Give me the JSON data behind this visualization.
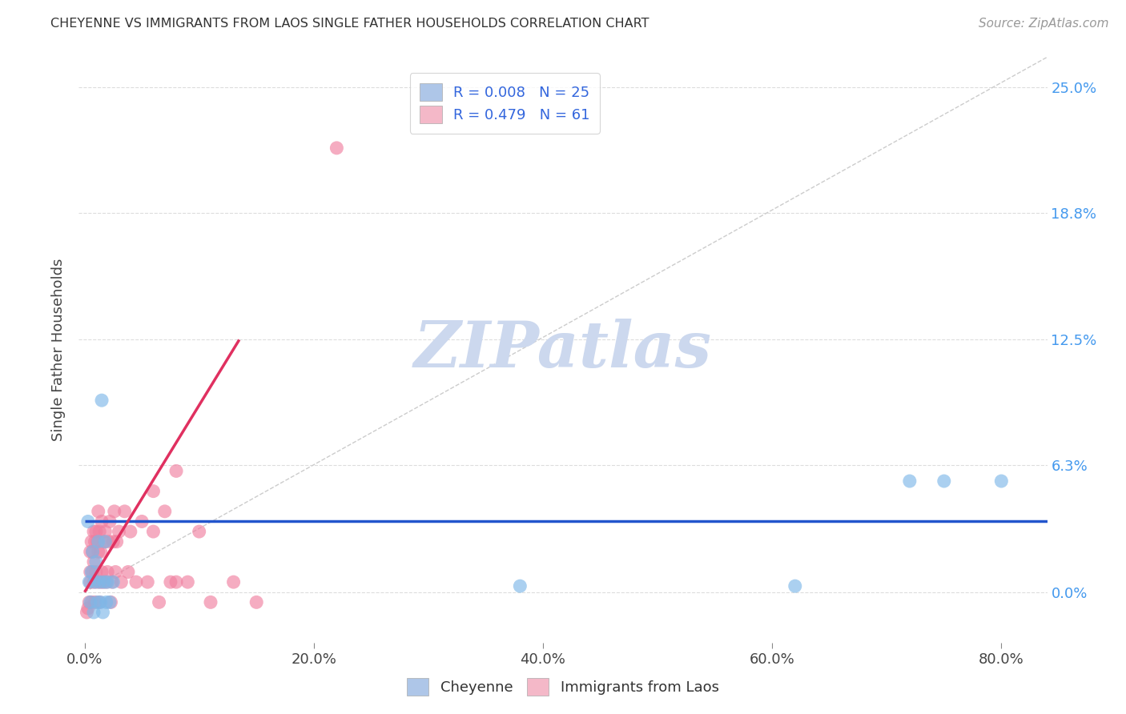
{
  "title": "CHEYENNE VS IMMIGRANTS FROM LAOS SINGLE FATHER HOUSEHOLDS CORRELATION CHART",
  "source": "Source: ZipAtlas.com",
  "ylabel": "Single Father Households",
  "xlabel_ticks": [
    "0.0%",
    "20.0%",
    "40.0%",
    "60.0%",
    "80.0%"
  ],
  "xlabel_vals": [
    0.0,
    0.2,
    0.4,
    0.6,
    0.8
  ],
  "ylabel_ticks": [
    "0.0%",
    "6.3%",
    "12.5%",
    "18.8%",
    "25.0%"
  ],
  "ylabel_vals": [
    0.0,
    0.063,
    0.125,
    0.188,
    0.25
  ],
  "xlim": [
    -0.005,
    0.84
  ],
  "ylim": [
    -0.025,
    0.265
  ],
  "legend1_label": "R = 0.008   N = 25",
  "legend2_label": "R = 0.479   N = 61",
  "legend1_color": "#aec6e8",
  "legend2_color": "#f4b8c8",
  "cheyenne_color": "#7EB8E8",
  "laos_color": "#F080A0",
  "diag_line_color": "#cccccc",
  "chey_line_color": "#2255cc",
  "laos_line_color": "#e03060",
  "watermark": "ZIPatlas",
  "watermark_color": "#ccd8ee",
  "background_color": "#ffffff",
  "grid_color": "#dddddd",
  "cheyenne_x": [
    0.003,
    0.004,
    0.005,
    0.006,
    0.007,
    0.008,
    0.009,
    0.01,
    0.011,
    0.012,
    0.013,
    0.014,
    0.015,
    0.016,
    0.017,
    0.018,
    0.019,
    0.02,
    0.022,
    0.025,
    0.38,
    0.62,
    0.72,
    0.75,
    0.8
  ],
  "cheyenne_y": [
    0.035,
    0.005,
    -0.005,
    0.01,
    0.02,
    -0.01,
    0.005,
    0.015,
    -0.005,
    0.025,
    0.005,
    -0.005,
    0.095,
    -0.01,
    0.005,
    0.025,
    -0.005,
    0.005,
    -0.005,
    0.005,
    0.003,
    0.003,
    0.055,
    0.055,
    0.055
  ],
  "laos_x": [
    0.002,
    0.003,
    0.004,
    0.005,
    0.005,
    0.005,
    0.006,
    0.006,
    0.007,
    0.007,
    0.008,
    0.008,
    0.008,
    0.009,
    0.009,
    0.01,
    0.01,
    0.011,
    0.011,
    0.012,
    0.012,
    0.013,
    0.013,
    0.014,
    0.014,
    0.015,
    0.015,
    0.016,
    0.017,
    0.018,
    0.019,
    0.02,
    0.021,
    0.022,
    0.023,
    0.024,
    0.025,
    0.026,
    0.027,
    0.028,
    0.03,
    0.032,
    0.035,
    0.038,
    0.04,
    0.045,
    0.05,
    0.055,
    0.06,
    0.065,
    0.07,
    0.075,
    0.08,
    0.09,
    0.1,
    0.11,
    0.13,
    0.15,
    0.06,
    0.08,
    0.22
  ],
  "laos_y": [
    -0.01,
    -0.008,
    -0.005,
    0.005,
    0.01,
    0.02,
    0.025,
    -0.005,
    0.01,
    0.02,
    0.005,
    0.015,
    0.03,
    -0.005,
    0.025,
    0.01,
    0.03,
    0.005,
    0.025,
    0.02,
    0.04,
    -0.005,
    0.03,
    0.005,
    0.02,
    0.01,
    0.035,
    0.005,
    0.025,
    0.03,
    0.005,
    0.01,
    0.025,
    0.035,
    -0.005,
    0.005,
    0.025,
    0.04,
    0.01,
    0.025,
    0.03,
    0.005,
    0.04,
    0.01,
    0.03,
    0.005,
    0.035,
    0.005,
    0.03,
    -0.005,
    0.04,
    0.005,
    0.06,
    0.005,
    0.03,
    -0.005,
    0.005,
    -0.005,
    0.05,
    0.005,
    0.22
  ],
  "chey_line_x": [
    0.0,
    0.84
  ],
  "chey_line_y": [
    0.035,
    0.035
  ],
  "laos_line_x": [
    0.0,
    0.135
  ],
  "laos_line_y": [
    0.0,
    0.125
  ],
  "diag_line_x": [
    0.0,
    0.84
  ],
  "diag_line_y": [
    0.0,
    0.265
  ]
}
